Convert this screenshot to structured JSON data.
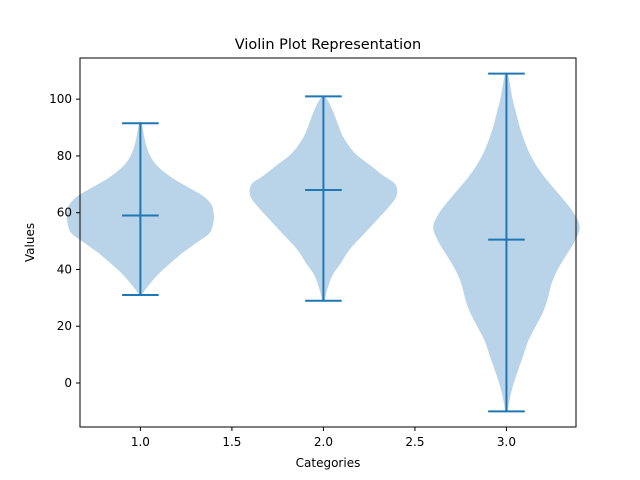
{
  "chart_data": {
    "type": "violin",
    "title": "Violin Plot Representation",
    "xlabel": "Categories",
    "ylabel": "Values",
    "xlim": [
      0.67,
      3.38
    ],
    "ylim": [
      -15.5,
      114.5
    ],
    "xticks": [
      1.0,
      1.5,
      2.0,
      2.5,
      3.0
    ],
    "xtick_labels": [
      "1.0",
      "1.5",
      "2.0",
      "2.5",
      "3.0"
    ],
    "yticks": [
      0,
      20,
      40,
      60,
      80,
      100
    ],
    "ytick_labels": [
      "0",
      "20",
      "40",
      "60",
      "80",
      "100"
    ],
    "colors": {
      "body": "#b9d4e8",
      "line": "#1f77b4"
    },
    "violins": [
      {
        "position": 1.0,
        "min": 31,
        "mean": 59,
        "max": 91.5,
        "profile": [
          [
            31,
            0.01
          ],
          [
            34,
            0.06
          ],
          [
            38,
            0.14
          ],
          [
            42,
            0.24
          ],
          [
            46,
            0.35
          ],
          [
            50,
            0.48
          ],
          [
            53,
            0.57
          ],
          [
            57,
            0.6
          ],
          [
            60,
            0.6
          ],
          [
            63,
            0.58
          ],
          [
            66,
            0.51
          ],
          [
            69,
            0.39
          ],
          [
            72,
            0.27
          ],
          [
            76,
            0.15
          ],
          [
            80,
            0.08
          ],
          [
            85,
            0.04
          ],
          [
            91.5,
            0.01
          ]
        ]
      },
      {
        "position": 2.0,
        "min": 29,
        "mean": 68,
        "max": 101,
        "profile": [
          [
            29,
            0.01
          ],
          [
            33,
            0.03
          ],
          [
            38,
            0.07
          ],
          [
            42,
            0.13
          ],
          [
            47,
            0.2
          ],
          [
            52,
            0.3
          ],
          [
            57,
            0.4
          ],
          [
            62,
            0.5
          ],
          [
            66,
            0.56
          ],
          [
            70,
            0.55
          ],
          [
            73,
            0.46
          ],
          [
            77,
            0.35
          ],
          [
            81,
            0.24
          ],
          [
            86,
            0.16
          ],
          [
            90,
            0.12
          ],
          [
            95,
            0.08
          ],
          [
            99,
            0.04
          ],
          [
            101,
            0.01
          ]
        ]
      },
      {
        "position": 3.0,
        "min": -10,
        "mean": 50.5,
        "max": 109,
        "profile": [
          [
            -10,
            0.01
          ],
          [
            -5,
            0.03
          ],
          [
            0,
            0.06
          ],
          [
            5,
            0.1
          ],
          [
            10,
            0.14
          ],
          [
            15,
            0.18
          ],
          [
            20,
            0.24
          ],
          [
            25,
            0.3
          ],
          [
            30,
            0.34
          ],
          [
            35,
            0.37
          ],
          [
            40,
            0.42
          ],
          [
            45,
            0.49
          ],
          [
            50,
            0.56
          ],
          [
            55,
            0.6
          ],
          [
            60,
            0.55
          ],
          [
            65,
            0.46
          ],
          [
            70,
            0.36
          ],
          [
            75,
            0.27
          ],
          [
            80,
            0.2
          ],
          [
            85,
            0.15
          ],
          [
            90,
            0.11
          ],
          [
            95,
            0.08
          ],
          [
            100,
            0.05
          ],
          [
            105,
            0.03
          ],
          [
            109,
            0.01
          ]
        ]
      }
    ]
  }
}
